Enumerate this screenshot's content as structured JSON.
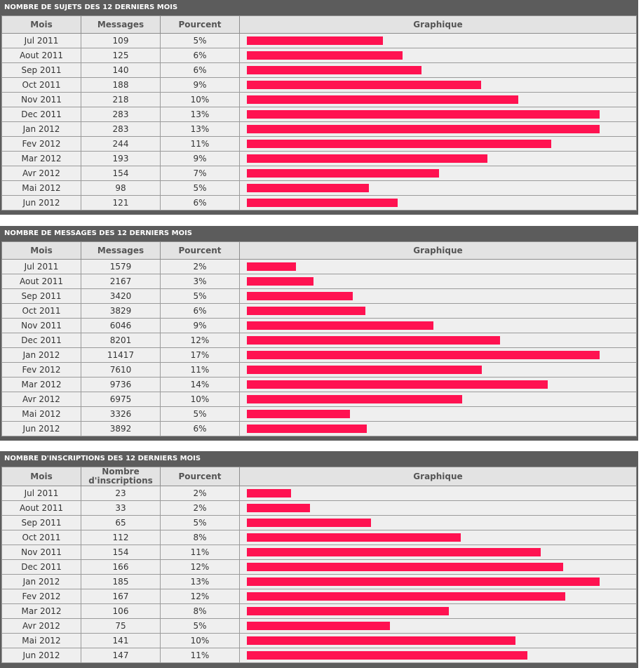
{
  "sections": [
    {
      "title": "NOMBRE DE SUJETS DES 12 DERNIERS MOIS",
      "headers": [
        "Mois",
        "Messages",
        "Pourcent",
        "Graphique"
      ],
      "max_value": 283,
      "rows": [
        {
          "mois": "Jul 2011",
          "value": "109",
          "pct": "5%"
        },
        {
          "mois": "Aout 2011",
          "value": "125",
          "pct": "6%"
        },
        {
          "mois": "Sep 2011",
          "value": "140",
          "pct": "6%"
        },
        {
          "mois": "Oct 2011",
          "value": "188",
          "pct": "9%"
        },
        {
          "mois": "Nov 2011",
          "value": "218",
          "pct": "10%"
        },
        {
          "mois": "Dec 2011",
          "value": "283",
          "pct": "13%"
        },
        {
          "mois": "Jan 2012",
          "value": "283",
          "pct": "13%"
        },
        {
          "mois": "Fev 2012",
          "value": "244",
          "pct": "11%"
        },
        {
          "mois": "Mar 2012",
          "value": "193",
          "pct": "9%"
        },
        {
          "mois": "Avr 2012",
          "value": "154",
          "pct": "7%"
        },
        {
          "mois": "Mai 2012",
          "value": "98",
          "pct": "5%"
        },
        {
          "mois": "Jun 2012",
          "value": "121",
          "pct": "6%"
        }
      ]
    },
    {
      "title": "NOMBRE DE MESSAGES DES 12 DERNIERS MOIS",
      "headers": [
        "Mois",
        "Messages",
        "Pourcent",
        "Graphique"
      ],
      "max_value": 11417,
      "rows": [
        {
          "mois": "Jul 2011",
          "value": "1579",
          "pct": "2%"
        },
        {
          "mois": "Aout 2011",
          "value": "2167",
          "pct": "3%"
        },
        {
          "mois": "Sep 2011",
          "value": "3420",
          "pct": "5%"
        },
        {
          "mois": "Oct 2011",
          "value": "3829",
          "pct": "6%"
        },
        {
          "mois": "Nov 2011",
          "value": "6046",
          "pct": "9%"
        },
        {
          "mois": "Dec 2011",
          "value": "8201",
          "pct": "12%"
        },
        {
          "mois": "Jan 2012",
          "value": "11417",
          "pct": "17%"
        },
        {
          "mois": "Fev 2012",
          "value": "7610",
          "pct": "11%"
        },
        {
          "mois": "Mar 2012",
          "value": "9736",
          "pct": "14%"
        },
        {
          "mois": "Avr 2012",
          "value": "6975",
          "pct": "10%"
        },
        {
          "mois": "Mai 2012",
          "value": "3326",
          "pct": "5%"
        },
        {
          "mois": "Jun 2012",
          "value": "3892",
          "pct": "6%"
        }
      ]
    },
    {
      "title": "NOMBRE D'INSCRIPTIONS DES 12 DERNIERS MOIS",
      "headers": [
        "Mois",
        "Nombre d'inscriptions",
        "Pourcent",
        "Graphique"
      ],
      "header2_lines": [
        "Nombre",
        "d'inscriptions"
      ],
      "max_value": 185,
      "rows": [
        {
          "mois": "Jul 2011",
          "value": "23",
          "pct": "2%"
        },
        {
          "mois": "Aout 2011",
          "value": "33",
          "pct": "2%"
        },
        {
          "mois": "Sep 2011",
          "value": "65",
          "pct": "5%"
        },
        {
          "mois": "Oct 2011",
          "value": "112",
          "pct": "8%"
        },
        {
          "mois": "Nov 2011",
          "value": "154",
          "pct": "11%"
        },
        {
          "mois": "Dec 2011",
          "value": "166",
          "pct": "12%"
        },
        {
          "mois": "Jan 2012",
          "value": "185",
          "pct": "13%"
        },
        {
          "mois": "Fev 2012",
          "value": "167",
          "pct": "12%"
        },
        {
          "mois": "Mar 2012",
          "value": "106",
          "pct": "8%"
        },
        {
          "mois": "Avr 2012",
          "value": "75",
          "pct": "5%"
        },
        {
          "mois": "Mai 2012",
          "value": "141",
          "pct": "10%"
        },
        {
          "mois": "Jun 2012",
          "value": "147",
          "pct": "11%"
        }
      ]
    }
  ],
  "colors": {
    "bar": "#ff1251",
    "header_bg": "#5c5c5c"
  }
}
